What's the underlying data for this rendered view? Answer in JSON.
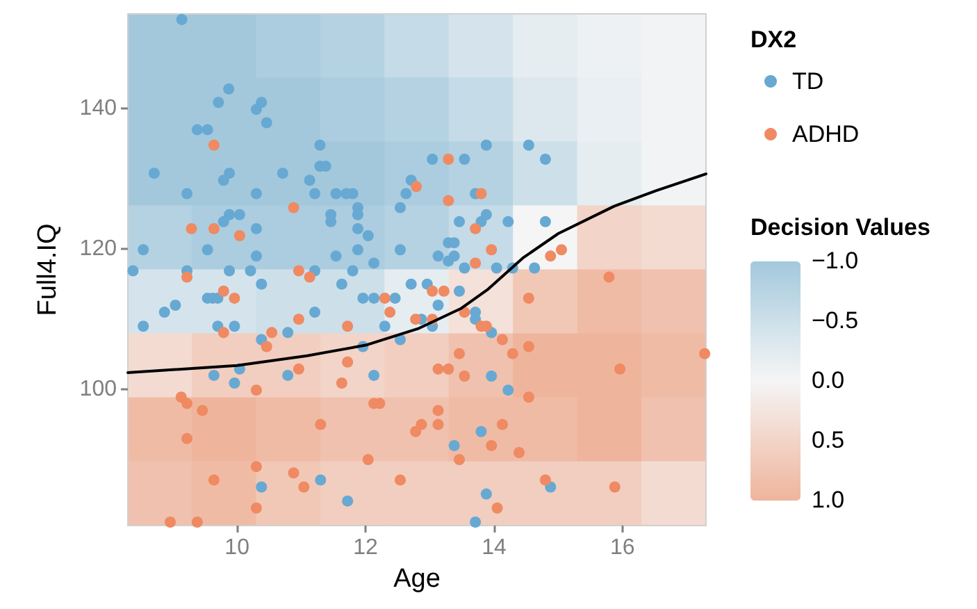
{
  "chart_data": [
    {
      "type": "heatmap",
      "clabel": "Decision Values",
      "categories": [
        null,
        null,
        null,
        null,
        null,
        null,
        null,
        null,
        null
      ],
      "y_categories": [
        null,
        null,
        null,
        null,
        null,
        null,
        null,
        null
      ],
      "clim": [
        -1,
        1
      ],
      "cticks": [
        {
          "value": -1,
          "label": "−1.0"
        },
        {
          "value": -0.5,
          "label": "−0.5"
        },
        {
          "value": 0,
          "label": "0.0"
        },
        {
          "value": 0.5,
          "label": "0.5"
        },
        {
          "value": 1,
          "label": "1.0"
        }
      ],
      "cells": [
        [
          -1,
          -1,
          -0.9,
          -0.8,
          -0.6,
          -0.4,
          -0.2,
          -0.1,
          -0.05
        ],
        [
          -1,
          -1,
          -1,
          -0.9,
          -0.8,
          -0.6,
          -0.3,
          -0.15,
          -0.05
        ],
        [
          -1,
          -1,
          -1,
          -1,
          -0.9,
          -0.8,
          -0.5,
          -0.2,
          -0.05
        ],
        [
          -0.8,
          -0.9,
          -0.9,
          -0.9,
          -0.8,
          -0.6,
          0,
          0.5,
          0.4
        ],
        [
          -0.4,
          -0.4,
          -0.5,
          -0.5,
          -0.2,
          0.3,
          0.7,
          0.9,
          0.8
        ],
        [
          0.4,
          0.6,
          0.6,
          0.5,
          0.6,
          0.8,
          1,
          1,
          0.9
        ],
        [
          0.9,
          1,
          0.9,
          0.8,
          0.8,
          0.9,
          0.9,
          1,
          0.8
        ],
        [
          0.8,
          0.9,
          0.7,
          0.6,
          0.6,
          0.6,
          0.6,
          0.6,
          0.4
        ]
      ]
    },
    {
      "type": "scatter",
      "xlabel": "Age",
      "ylabel": "Full4.IQ",
      "legend_title": "DX2",
      "xlim": [
        8.3,
        17.3
      ],
      "ylim": [
        80.6,
        153.5
      ],
      "xticks": [
        10,
        12,
        14,
        16
      ],
      "yticks": [
        100,
        120,
        140
      ],
      "grid": false,
      "legend": "right",
      "marker": "circle",
      "series": [
        {
          "name": "TD",
          "color": "#67a9d3",
          "x": [
            9.14,
            9.87,
            9.71,
            10.38,
            10.3,
            10.46,
            9.38,
            9.54,
            11.29,
            8.71,
            9.88,
            9.79,
            10.71,
            11.29,
            11.38,
            11.13,
            12.71,
            12.63,
            9.22,
            10.3,
            11.21,
            11.54,
            11.7,
            11.8,
            11.88,
            12.54,
            9.88,
            10.04,
            9.79,
            11.46,
            11.46,
            11.88,
            10.3,
            11.88,
            12.04,
            8.54,
            9.54,
            11.88,
            12.54,
            10.3,
            11.54,
            12.13,
            8.38,
            9.22,
            9.88,
            10.21,
            11.21,
            11.8,
            10.38,
            11.63,
            12.71,
            9.54,
            9.62,
            9.7,
            11.96,
            12.13,
            12.46,
            9.04,
            8.87,
            11.21,
            8.54,
            9.7,
            9.96,
            12.3,
            10.38,
            10.79,
            12.54,
            11.96,
            9.64,
            10.04,
            9.96,
            10.79,
            12.13,
            11.3,
            10.38,
            11.72,
            13.88,
            14.54,
            13.04,
            13.54,
            14.8,
            13.71,
            13.88,
            13.8,
            13.46,
            14.22,
            14.8,
            13.29,
            13.38,
            13.13,
            13.29,
            13.38,
            13.54,
            14.04,
            14.29,
            14.63,
            12.96,
            13.46,
            13.13,
            12.87,
            13.04,
            13.71,
            13.71,
            13.96,
            13.96,
            14.22,
            13.8,
            13.38,
            13.88,
            14.88,
            13.71
          ],
          "values": [
            152.7,
            142.8,
            140.9,
            140.9,
            139.9,
            138,
            137,
            137,
            134.8,
            130.8,
            130.8,
            129.8,
            130.8,
            131.8,
            131.8,
            129.8,
            129.8,
            127.9,
            127.9,
            127.9,
            127.9,
            127.9,
            127.9,
            127.9,
            125.9,
            125.9,
            124.9,
            124.9,
            123.9,
            124.9,
            123.9,
            124.9,
            122.9,
            122.9,
            121.9,
            119.9,
            119.9,
            119.9,
            119.9,
            119,
            119,
            118,
            116.9,
            116.9,
            116.9,
            116.9,
            116.9,
            116.9,
            115,
            115,
            115,
            113,
            113,
            113,
            113,
            113,
            113,
            112,
            111,
            111,
            109,
            109,
            109,
            109,
            107.1,
            108.1,
            107.1,
            106.1,
            102,
            102.9,
            100.9,
            102,
            102,
            87.1,
            86.1,
            84.1,
            134.8,
            134.8,
            132.8,
            132.8,
            132.8,
            127.9,
            124.9,
            123.9,
            123.9,
            123.9,
            123.9,
            120.9,
            120.9,
            119,
            118.3,
            119,
            117.3,
            117.3,
            117.3,
            117.3,
            115,
            114,
            112,
            110,
            109,
            111,
            110,
            108.1,
            101.9,
            99.9,
            94,
            92,
            85.1,
            86.1,
            81.1
          ]
        },
        {
          "name": "ADHD",
          "color": "#ef8a62",
          "x": [
            9.64,
            12.79,
            10.88,
            9.29,
            9.64,
            10.04,
            10.96,
            9.22,
            11.13,
            9.79,
            9.96,
            12.3,
            12.38,
            10.96,
            11.72,
            12.78,
            9.79,
            10.54,
            10.46,
            11.72,
            10.96,
            10.3,
            11.63,
            9.13,
            9.22,
            9.46,
            12.13,
            12.22,
            11.3,
            9.22,
            12.78,
            12.04,
            10.3,
            10.88,
            9.64,
            11.04,
            12.54,
            10.3,
            8.96,
            9.38,
            13.29,
            13.8,
            13.29,
            13.71,
            13.96,
            14.88,
            15.05,
            13.71,
            15.79,
            14.54,
            13.04,
            13.22,
            13.54,
            13.04,
            13.8,
            13.88,
            14.13,
            13.46,
            14.29,
            14.54,
            13.13,
            13.29,
            13.54,
            15.96,
            17.28,
            14.54,
            13.13,
            12.87,
            13.13,
            14.13,
            13.96,
            13.46,
            14.39,
            14.8,
            15.88,
            14.05
          ],
          "values": [
            134.8,
            128.9,
            125.9,
            122.9,
            122.9,
            121.9,
            116.9,
            116,
            116,
            114,
            113,
            113,
            111,
            110,
            109,
            110,
            108.1,
            108.1,
            106.1,
            103.9,
            102.9,
            99.9,
            100.9,
            98.9,
            98,
            97,
            98,
            98,
            95,
            93,
            94,
            90,
            89,
            88.1,
            87.1,
            86.1,
            87.1,
            83.1,
            81.1,
            81.1,
            132.8,
            127.9,
            126.9,
            122.9,
            119.9,
            119,
            119.9,
            118,
            116,
            113,
            114,
            114,
            111,
            110,
            109,
            109,
            107.1,
            105.1,
            105.1,
            106.1,
            102.9,
            102.9,
            101.9,
            102.9,
            105.1,
            98.9,
            97,
            95,
            95,
            95,
            92,
            90,
            91,
            87.1,
            86.1,
            83.1
          ]
        },
        {
          "type": "line",
          "color": "#000000",
          "marker": "none",
          "x": [
            8.3,
            10,
            11.09,
            12,
            12.83,
            13.48,
            13.91,
            14.46,
            15,
            15.87,
            16.52,
            17.3
          ],
          "values": [
            102.4,
            103.4,
            104.8,
            106.3,
            108.7,
            111.5,
            114.3,
            118.8,
            122.2,
            126.1,
            128.3,
            130.7
          ]
        }
      ]
    }
  ]
}
